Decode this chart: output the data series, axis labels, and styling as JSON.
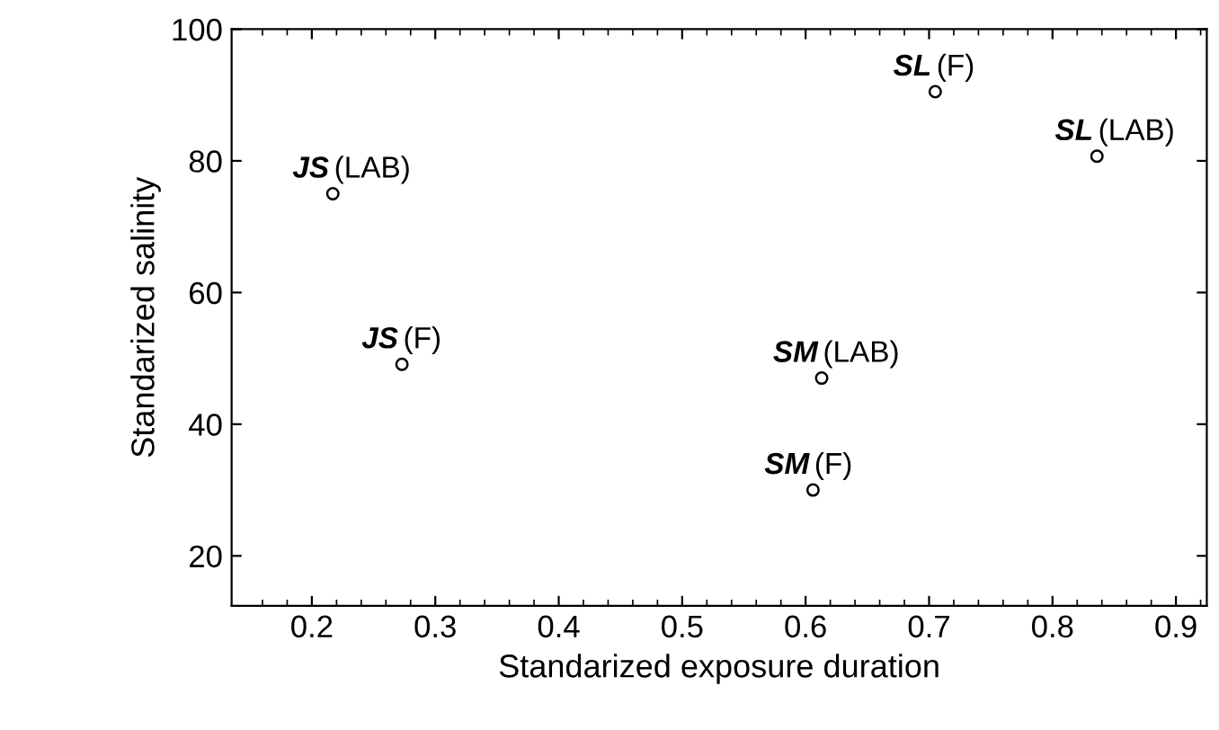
{
  "chart_data": {
    "type": "scatter",
    "xlabel": "Standarized exposure duration",
    "ylabel": "Standarized salinity",
    "x": [
      0.217,
      0.273,
      0.613,
      0.606,
      0.705,
      0.836
    ],
    "values": [
      75.0,
      49.1,
      47.0,
      30.0,
      90.5,
      80.7
    ],
    "color": "#000000",
    "marker": "circle",
    "grid": false,
    "legend": false,
    "xlim": [
      0.135,
      0.925
    ],
    "ylim": [
      12.4,
      100
    ],
    "xticks": [
      0.2,
      0.3,
      0.4,
      0.5,
      0.6,
      0.7,
      0.8,
      0.9
    ],
    "yticks": [
      20,
      40,
      60,
      80,
      100
    ],
    "annotations": [
      {
        "text": "JS (LAB)",
        "x": 0.217,
        "y": 75.0
      },
      {
        "text": "JS (F)",
        "x": 0.273,
        "y": 49.1
      },
      {
        "text": "SM (LAB)",
        "x": 0.613,
        "y": 47.0
      },
      {
        "text": "SM (F)",
        "x": 0.606,
        "y": 30.0
      },
      {
        "text": "SL (F)",
        "x": 0.705,
        "y": 90.5
      },
      {
        "text": "SL (LAB)",
        "x": 0.836,
        "y": 80.7
      }
    ]
  }
}
